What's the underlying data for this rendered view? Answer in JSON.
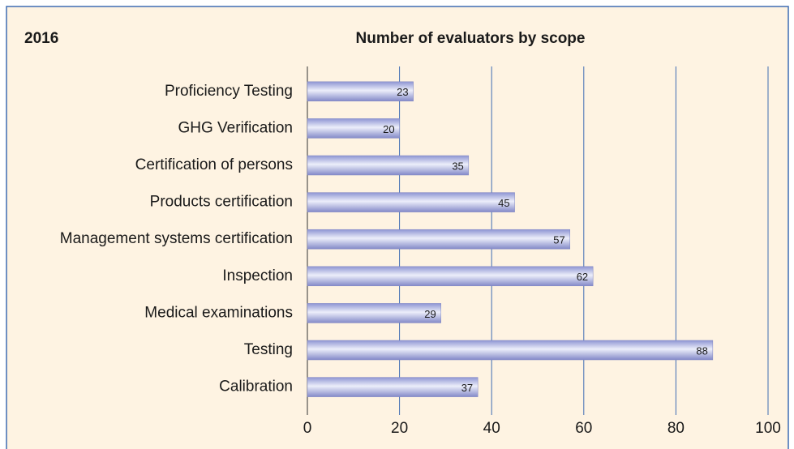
{
  "chart_data": {
    "type": "barh",
    "title": "Number of evaluators by scope",
    "subtitle": "2016",
    "categories": [
      "Proficiency Testing",
      "GHG Verification",
      "Certification of persons",
      "Products certification",
      "Management systems certification",
      "Inspection",
      "Medical examinations",
      "Testing",
      "Calibration"
    ],
    "values": [
      23,
      20,
      35,
      45,
      57,
      62,
      29,
      88,
      37
    ],
    "color": "#a9afe2",
    "xlim": [
      0,
      100
    ],
    "xticks": [
      0,
      20,
      40,
      60,
      80,
      100
    ],
    "grid": true
  }
}
